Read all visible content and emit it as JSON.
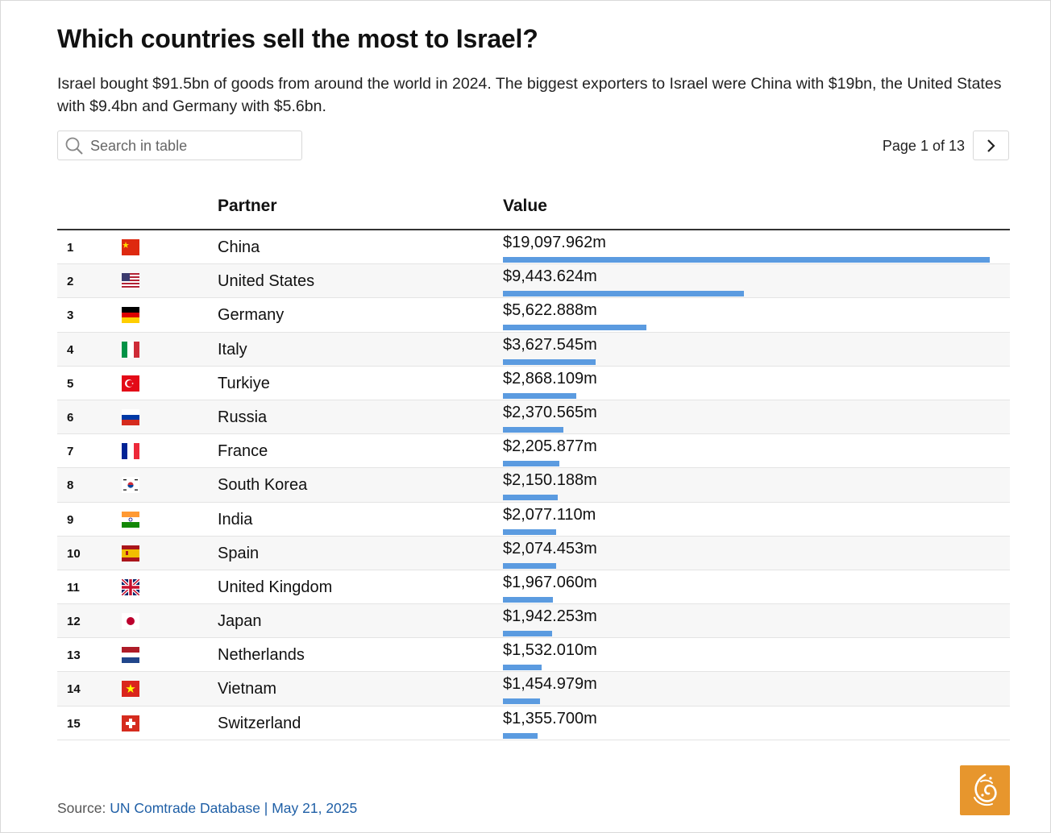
{
  "title": "Which countries sell the most to Israel?",
  "subtitle": "Israel bought $91.5bn of goods from around the world in 2024. The biggest exporters to Israel were China with $19bn, the United States with $9.4bn and Germany with $5.6bn.",
  "search": {
    "placeholder": "Search in table"
  },
  "pager": {
    "text": "Page 1 of 13"
  },
  "table": {
    "col_partner": "Partner",
    "col_value": "Value",
    "bar_color": "#5b9be0"
  },
  "chart_data": {
    "type": "table",
    "columns": [
      "",
      "",
      "Partner",
      "Value"
    ],
    "unit": "$ millions",
    "rows": [
      {
        "rank": "1",
        "flag": "china-flag",
        "partner": "China",
        "value": 19097.962,
        "value_label": "$19,097.962m"
      },
      {
        "rank": "2",
        "flag": "united-states-flag",
        "partner": "United States",
        "value": 9443.624,
        "value_label": "$9,443.624m"
      },
      {
        "rank": "3",
        "flag": "germany-flag",
        "partner": "Germany",
        "value": 5622.888,
        "value_label": "$5,622.888m"
      },
      {
        "rank": "4",
        "flag": "italy-flag",
        "partner": "Italy",
        "value": 3627.545,
        "value_label": "$3,627.545m"
      },
      {
        "rank": "5",
        "flag": "turkiye-flag",
        "partner": "Turkiye",
        "value": 2868.109,
        "value_label": "$2,868.109m"
      },
      {
        "rank": "6",
        "flag": "russia-flag",
        "partner": "Russia",
        "value": 2370.565,
        "value_label": "$2,370.565m"
      },
      {
        "rank": "7",
        "flag": "france-flag",
        "partner": "France",
        "value": 2205.877,
        "value_label": "$2,205.877m"
      },
      {
        "rank": "8",
        "flag": "south-korea-flag",
        "partner": "South Korea",
        "value": 2150.188,
        "value_label": "$2,150.188m"
      },
      {
        "rank": "9",
        "flag": "india-flag",
        "partner": "India",
        "value": 2077.11,
        "value_label": "$2,077.110m"
      },
      {
        "rank": "10",
        "flag": "spain-flag",
        "partner": "Spain",
        "value": 2074.453,
        "value_label": "$2,074.453m"
      },
      {
        "rank": "11",
        "flag": "united-kingdom-flag",
        "partner": "United Kingdom",
        "value": 1967.06,
        "value_label": "$1,967.060m"
      },
      {
        "rank": "12",
        "flag": "japan-flag",
        "partner": "Japan",
        "value": 1942.253,
        "value_label": "$1,942.253m"
      },
      {
        "rank": "13",
        "flag": "netherlands-flag",
        "partner": "Netherlands",
        "value": 1532.01,
        "value_label": "$1,532.010m"
      },
      {
        "rank": "14",
        "flag": "vietnam-flag",
        "partner": "Vietnam",
        "value": 1454.979,
        "value_label": "$1,454.979m"
      },
      {
        "rank": "15",
        "flag": "switzerland-flag",
        "partner": "Switzerland",
        "value": 1355.7,
        "value_label": "$1,355.700m"
      }
    ]
  },
  "source": {
    "label": "Source: ",
    "link_text": "UN Comtrade Database | May 21, 2025"
  },
  "logo": {
    "icon": "al-jazeera-logo-icon",
    "color": "#e7962d"
  }
}
